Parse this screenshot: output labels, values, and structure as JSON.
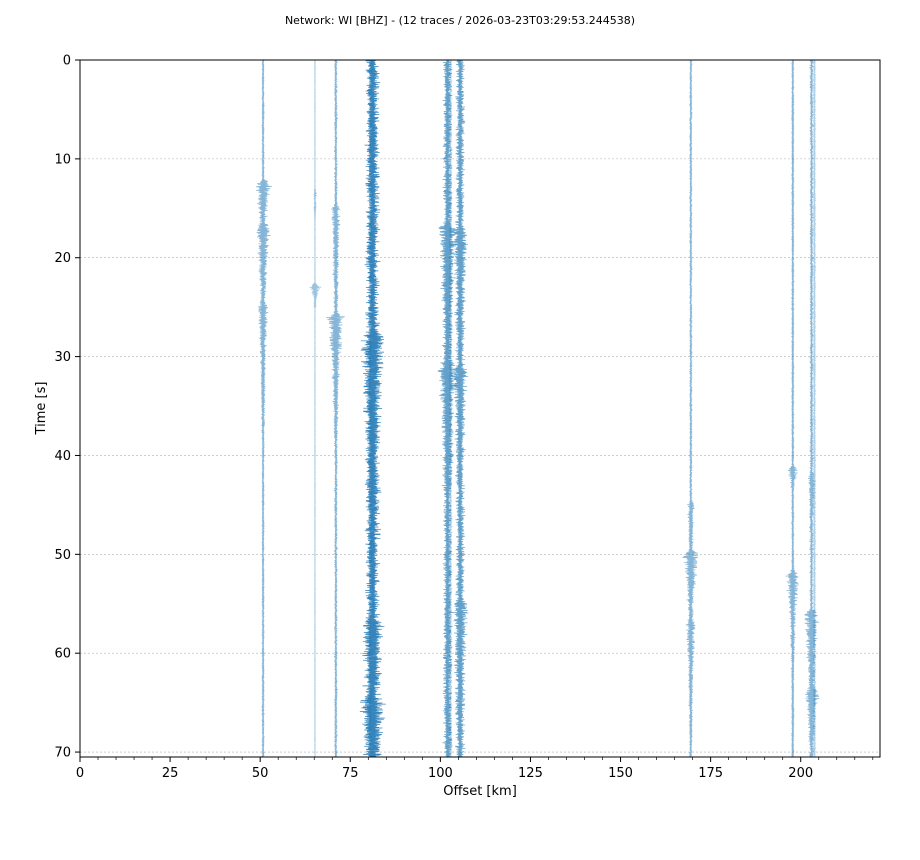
{
  "chart_data": {
    "type": "line",
    "title": "Network: WI [BHZ] - (12 traces / 2026-03-23T03:29:53.244538)",
    "xlabel": "Offset [km]",
    "ylabel": "Time [s]",
    "xlim": [
      0,
      222
    ],
    "ylim": [
      70.5,
      0
    ],
    "x_ticks": [
      0,
      25,
      50,
      75,
      100,
      125,
      150,
      175,
      200
    ],
    "y_ticks": [
      0,
      10,
      20,
      30,
      40,
      50,
      60,
      70
    ],
    "y_grid": true,
    "x_grid": false,
    "trace_color": "#1f77b4",
    "series": [
      {
        "offset": 50.8,
        "alpha": 0.55,
        "amp": 1.2,
        "events": [
          {
            "t": 12.5,
            "a": 9.0,
            "d": 4.0
          },
          {
            "t": 17.0,
            "a": 5.5,
            "d": 8.0
          },
          {
            "t": 25.0,
            "a": 3.5,
            "d": 6.0
          }
        ],
        "noise": 0.6
      },
      {
        "offset": 65.2,
        "alpha": 0.45,
        "amp": 0.3,
        "events": [
          {
            "t": 13.5,
            "a": 2.5,
            "d": 1.0
          },
          {
            "t": 23.0,
            "a": 9.0,
            "d": 0.8
          }
        ],
        "noise": 0.3
      },
      {
        "offset": 71.0,
        "alpha": 0.55,
        "amp": 1.3,
        "events": [
          {
            "t": 15.0,
            "a": 4.0,
            "d": 8.0
          },
          {
            "t": 26.0,
            "a": 9.0,
            "d": 5.0
          }
        ],
        "noise": 1.0
      },
      {
        "offset": 81.2,
        "alpha": 0.9,
        "amp": 4.0,
        "events": [
          {
            "t": 28.0,
            "a": 8.0,
            "d": 8.0
          },
          {
            "t": 57.0,
            "a": 7.0,
            "d": 6.0
          },
          {
            "t": 65.0,
            "a": 7.0,
            "d": 4.0
          }
        ],
        "noise": 1.5
      },
      {
        "offset": 102.0,
        "alpha": 0.7,
        "amp": 3.0,
        "events": [
          {
            "t": 17.0,
            "a": 8.0,
            "d": 6.0
          },
          {
            "t": 31.0,
            "a": 9.0,
            "d": 5.0
          }
        ],
        "noise": 1.2
      },
      {
        "offset": 105.5,
        "alpha": 0.7,
        "amp": 3.0,
        "events": [
          {
            "t": 17.5,
            "a": 6.0,
            "d": 5.0
          },
          {
            "t": 31.5,
            "a": 6.0,
            "d": 4.0
          },
          {
            "t": 55.0,
            "a": 5.0,
            "d": 6.0
          }
        ],
        "noise": 1.2
      },
      {
        "offset": 169.5,
        "alpha": 0.55,
        "amp": 1.2,
        "events": [
          {
            "t": 45.0,
            "a": 3.0,
            "d": 5.0
          },
          {
            "t": 50.0,
            "a": 8.0,
            "d": 4.0
          },
          {
            "t": 57.0,
            "a": 4.0,
            "d": 6.0
          }
        ],
        "noise": 0.8
      },
      {
        "offset": 197.8,
        "alpha": 0.55,
        "amp": 0.9,
        "events": [
          {
            "t": 41.5,
            "a": 7.0,
            "d": 1.0
          },
          {
            "t": 52.0,
            "a": 8.0,
            "d": 5.0
          }
        ],
        "noise": 0.7
      },
      {
        "offset": 203.0,
        "alpha": 0.55,
        "amp": 1.4,
        "events": [
          {
            "t": 42.0,
            "a": 3.0,
            "d": 3.0
          },
          {
            "t": 56.0,
            "a": 8.0,
            "d": 6.0
          },
          {
            "t": 64.0,
            "a": 8.0,
            "d": 2.0
          }
        ],
        "noise": 1.0
      },
      {
        "offset": 102.8,
        "alpha": 0.35,
        "amp": 1.5,
        "events": [],
        "noise": 0.8
      },
      {
        "offset": 80.5,
        "alpha": 0.35,
        "amp": 1.5,
        "events": [],
        "noise": 0.8
      },
      {
        "offset": 203.8,
        "alpha": 0.35,
        "amp": 0.8,
        "events": [],
        "noise": 0.5
      }
    ]
  }
}
